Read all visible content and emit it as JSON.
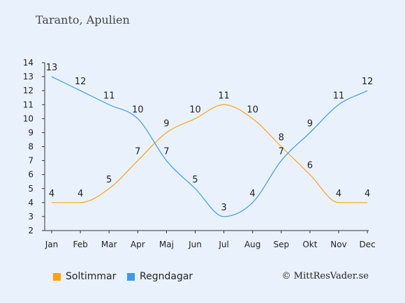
{
  "page": {
    "title": "Taranto, Apulien",
    "copyright": "© MittResVader.se"
  },
  "colors": {
    "background": "#e9f2fc",
    "sun": "#ffa20a",
    "rain": "#3a9be9",
    "axis": "#333333"
  },
  "chart_data": {
    "type": "line",
    "title": "Taranto, Apulien",
    "xlabel": "",
    "ylabel": "",
    "categories": [
      "Jan",
      "Feb",
      "Mar",
      "Apr",
      "Maj",
      "Jun",
      "Jul",
      "Aug",
      "Sep",
      "Okt",
      "Nov",
      "Dec"
    ],
    "ylim": [
      2,
      14
    ],
    "yticks": [
      2,
      3,
      4,
      5,
      6,
      7,
      8,
      9,
      10,
      11,
      12,
      13,
      14
    ],
    "grid": false,
    "legend_position": "bottom",
    "series": [
      {
        "name": "Soltimmar",
        "color": "#ffa20a",
        "values": [
          4,
          4,
          5,
          7,
          9,
          10,
          11,
          10,
          8,
          6,
          4,
          4
        ]
      },
      {
        "name": "Regndagar",
        "color": "#3a9be9",
        "values": [
          13,
          12,
          11,
          10,
          7,
          5,
          3,
          4,
          7,
          9,
          11,
          12
        ]
      }
    ]
  }
}
